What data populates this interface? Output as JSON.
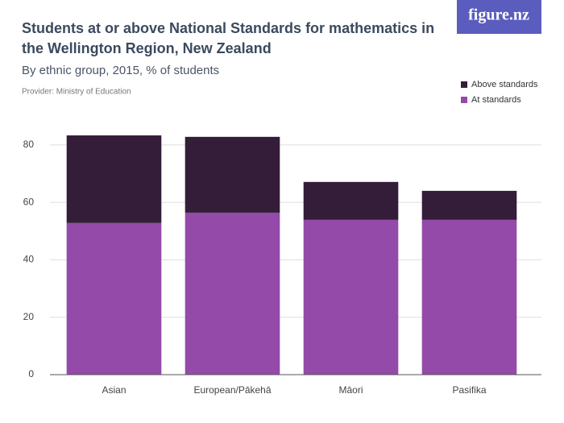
{
  "logo": "figure.nz",
  "chart_data": {
    "type": "stacked_bar",
    "title": [
      "Students at or above National Standards for mathematics in",
      "the Wellington Region, New Zealand"
    ],
    "subtitle": "By ethnic group, 2015, % of students",
    "provider": "Provider: Ministry of Education",
    "categories": [
      "Asian",
      "European/Pākehā",
      "Māori",
      "Pasifika"
    ],
    "series": [
      {
        "name": "At standards",
        "color": "#944aa9",
        "values": [
          52.8,
          56.4,
          53.9,
          53.9
        ]
      },
      {
        "name": "Above standards",
        "color": "#341d38",
        "values": [
          30.5,
          26.4,
          13.2,
          10.1
        ]
      }
    ],
    "ylim": [
      0,
      85
    ],
    "yticks": [
      0,
      20,
      40,
      60,
      80
    ],
    "grid": true,
    "legend": "top-right"
  }
}
